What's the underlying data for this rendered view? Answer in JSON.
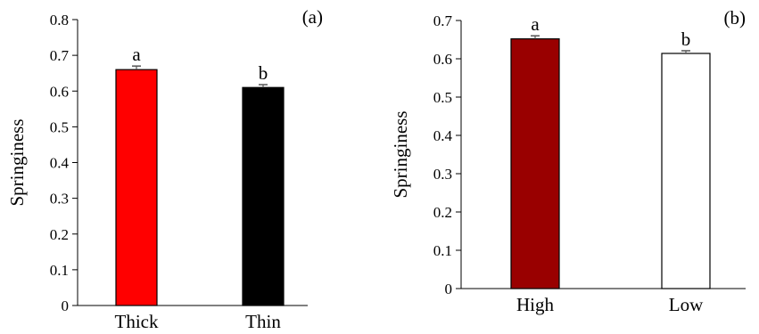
{
  "chart_data": [
    {
      "type": "bar",
      "panel_label": "(a)",
      "ylabel": "Springiness",
      "xlabel": "",
      "ylim": [
        0,
        0.8
      ],
      "yticks": [
        0,
        0.1,
        0.2,
        0.3,
        0.4,
        0.5,
        0.6,
        0.7,
        0.8
      ],
      "ytick_labels": [
        "0",
        "0.1",
        "0.2",
        "0.3",
        "0.4",
        "0.5",
        "0.6",
        "0.7",
        "0.8"
      ],
      "categories": [
        "Thick",
        "Thin"
      ],
      "values": [
        0.66,
        0.61
      ],
      "errors": [
        0.01,
        0.008
      ],
      "significance": [
        "a",
        "b"
      ],
      "colors": [
        "#ff0000",
        "#000000"
      ],
      "grid": false
    },
    {
      "type": "bar",
      "panel_label": "(b)",
      "ylabel": "Springiness",
      "xlabel": "",
      "ylim": [
        0,
        0.7
      ],
      "yticks": [
        0,
        0.1,
        0.2,
        0.3,
        0.4,
        0.5,
        0.6,
        0.7
      ],
      "ytick_labels": [
        "0",
        "0.1",
        "0.2",
        "0.3",
        "0.4",
        "0.5",
        "0.6",
        "0.7"
      ],
      "categories": [
        "High",
        "Low"
      ],
      "values": [
        0.652,
        0.614
      ],
      "errors": [
        0.008,
        0.007
      ],
      "significance": [
        "a",
        "b"
      ],
      "colors": [
        "#990000",
        "#ffffff"
      ],
      "grid": false
    }
  ]
}
